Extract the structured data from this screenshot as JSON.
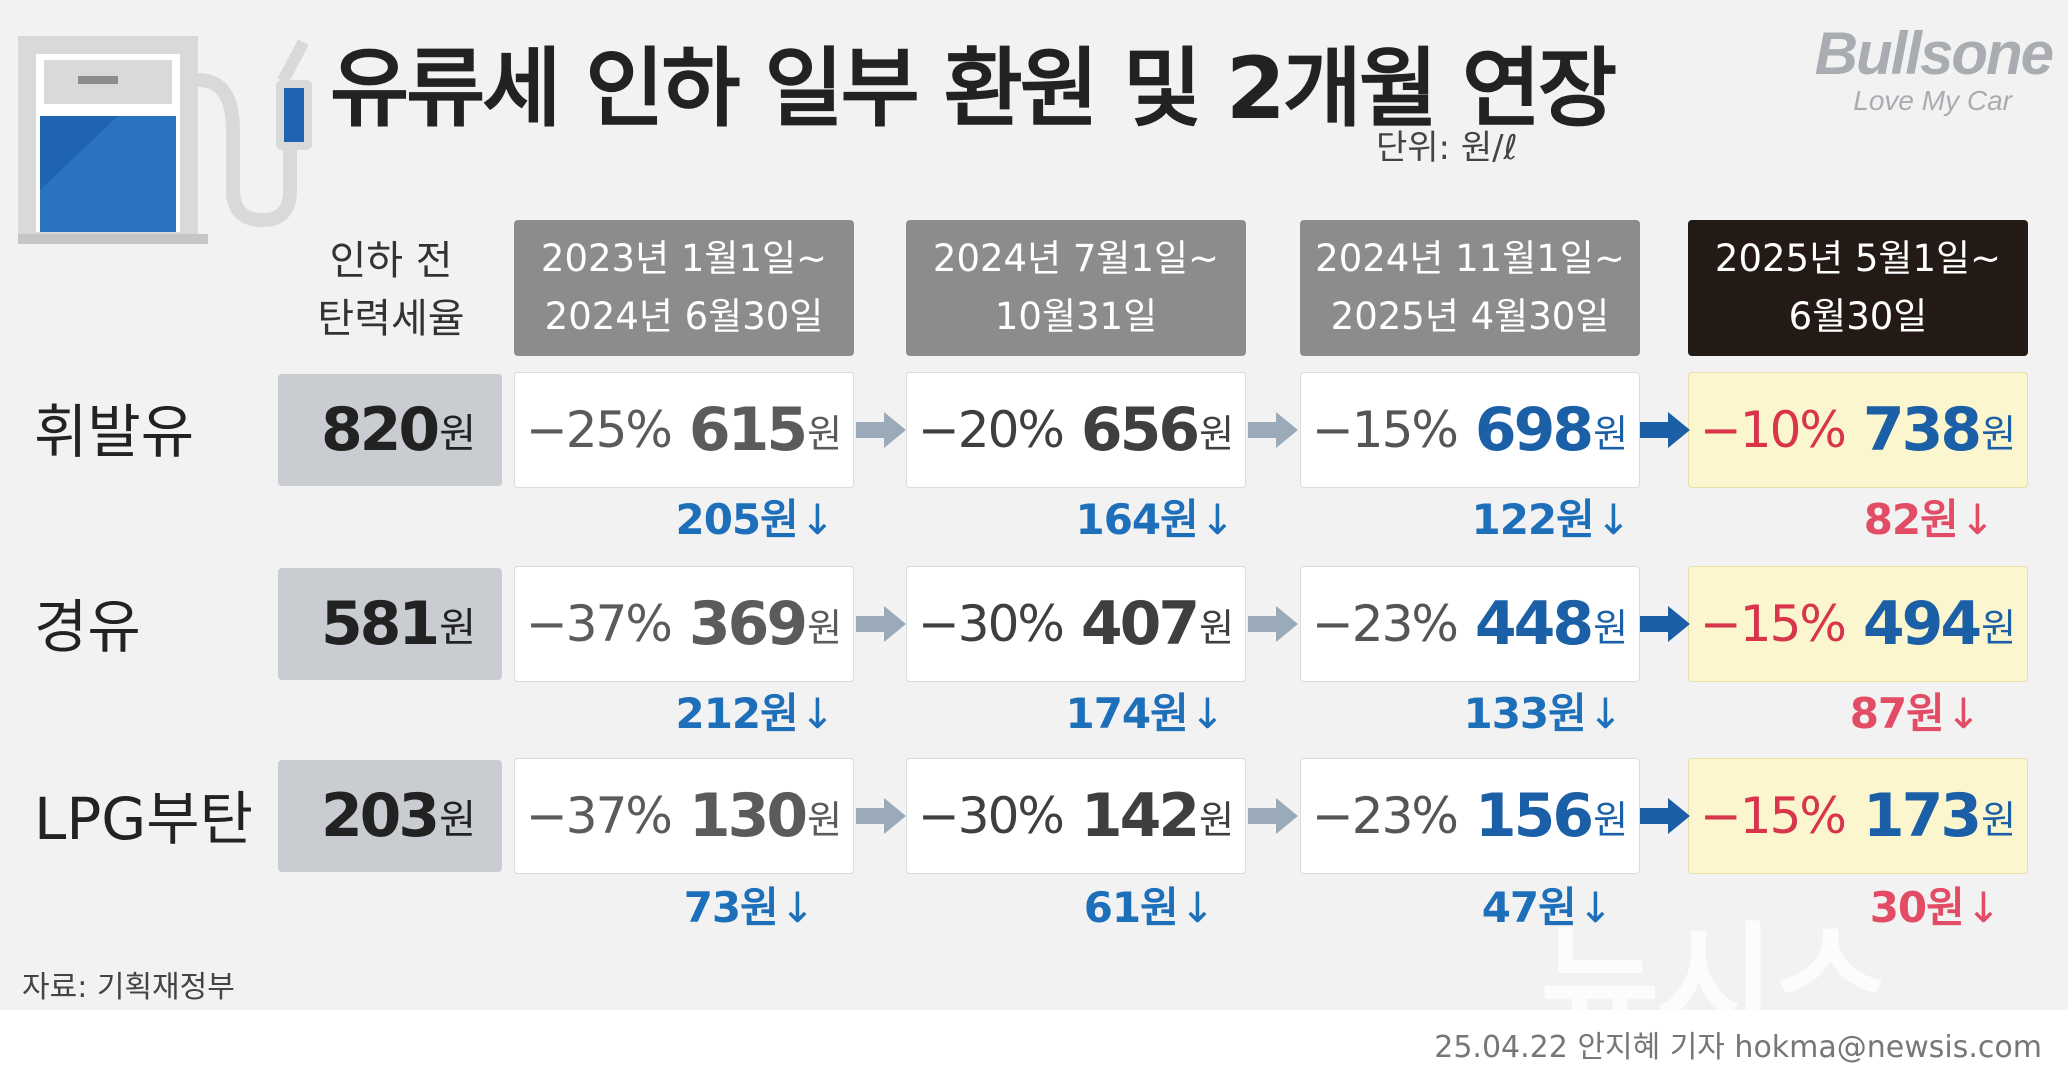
{
  "title": "유류세 인하 일부 환원 및 2개월 연장",
  "brand": {
    "name": "Bullsone",
    "tagline": "Love My Car"
  },
  "unit": "단위: 원/ℓ",
  "before_header": [
    "인하 전",
    "탄력세율"
  ],
  "won_suffix": "원",
  "periods": [
    {
      "line1": "2023년 1월1일~",
      "line2": "2024년 6월30일"
    },
    {
      "line1": "2024년 7월1일~",
      "line2": "10월31일"
    },
    {
      "line1": "2024년 11월1일~",
      "line2": "2025년 4월30일"
    },
    {
      "line1": "2025년 5월1일~",
      "line2": "6월30일"
    }
  ],
  "fuels": [
    {
      "name": "휘발유",
      "base": "820",
      "cells": [
        {
          "pct": "−25%",
          "value": "615",
          "diff": "205원"
        },
        {
          "pct": "−20%",
          "value": "656",
          "diff": "164원"
        },
        {
          "pct": "−15%",
          "value": "698",
          "diff": "122원"
        },
        {
          "pct": "−10%",
          "value": "738",
          "diff": "82원"
        }
      ]
    },
    {
      "name": "경유",
      "base": "581",
      "cells": [
        {
          "pct": "−37%",
          "value": "369",
          "diff": "212원"
        },
        {
          "pct": "−30%",
          "value": "407",
          "diff": "174원"
        },
        {
          "pct": "−23%",
          "value": "448",
          "diff": "133원"
        },
        {
          "pct": "−15%",
          "value": "494",
          "diff": "87원"
        }
      ]
    },
    {
      "name": "LPG부탄",
      "base": "203",
      "cells": [
        {
          "pct": "−37%",
          "value": "130",
          "diff": "73원"
        },
        {
          "pct": "−30%",
          "value": "142",
          "diff": "61원"
        },
        {
          "pct": "−23%",
          "value": "156",
          "diff": "47원"
        },
        {
          "pct": "−15%",
          "value": "173",
          "diff": "30원"
        }
      ]
    }
  ],
  "down_arrow": "↓",
  "source": "자료: 기획재정부",
  "credit": "25.04.22 안지혜 기자 hokma@newsis.com",
  "watermark": "뉴시스",
  "colors": {
    "period_header": "#8c8c8c",
    "current_header": "#231a16",
    "current_cell": "#fcf6cf",
    "blue_value": "#1b5fa6",
    "red_pct": "#d8344a",
    "arrow_gray": "#9aaab8",
    "arrow_blue": "#1b5fa6"
  },
  "chart_data": {
    "type": "table",
    "title": "유류세 인하 일부 환원 및 2개월 연장",
    "unit": "원/ℓ",
    "columns": [
      "인하 전 탄력세율",
      "2023년 1월1일~2024년 6월30일",
      "2024년 7월1일~10월31일",
      "2024년 11월1일~2025년 4월30일",
      "2025년 5월1일~6월30일"
    ],
    "rows": [
      {
        "fuel": "휘발유",
        "base": 820,
        "rates": [
          -25,
          -20,
          -15,
          -10
        ],
        "values": [
          615,
          656,
          698,
          738
        ],
        "reductions": [
          205,
          164,
          122,
          82
        ]
      },
      {
        "fuel": "경유",
        "base": 581,
        "rates": [
          -37,
          -30,
          -23,
          -15
        ],
        "values": [
          369,
          407,
          448,
          494
        ],
        "reductions": [
          212,
          174,
          133,
          87
        ]
      },
      {
        "fuel": "LPG부탄",
        "base": 203,
        "rates": [
          -37,
          -30,
          -23,
          -15
        ],
        "values": [
          130,
          142,
          156,
          173
        ],
        "reductions": [
          73,
          61,
          47,
          30
        ]
      }
    ]
  }
}
